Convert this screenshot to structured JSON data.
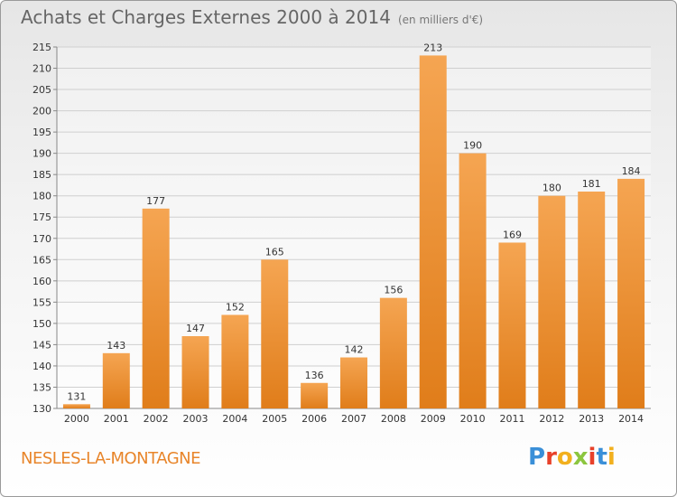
{
  "header": {
    "title": "Achats et Charges Externes 2000 à 2014",
    "unit": "(en milliers d'€)"
  },
  "footer": {
    "commune": "NESLES-LA-MONTAGNE",
    "logo_text": "Proxiti",
    "logo_colors": [
      "#3a8fd8",
      "#e8412a",
      "#f2b01e",
      "#8cc63f",
      "#e8412a",
      "#3a8fd8",
      "#f2b01e"
    ]
  },
  "colors": {
    "bar_top": "#f5a552",
    "bar_bottom": "#e07d1a",
    "grid": "#cfcfcf",
    "axis_text": "#333333"
  },
  "chart_data": {
    "type": "bar",
    "title": "Achats et Charges Externes 2000 à 2014",
    "ylabel": "",
    "xlabel": "",
    "categories": [
      "2000",
      "2001",
      "2002",
      "2003",
      "2004",
      "2005",
      "2006",
      "2007",
      "2008",
      "2009",
      "2010",
      "2011",
      "2012",
      "2013",
      "2014"
    ],
    "values": [
      131,
      143,
      177,
      147,
      152,
      165,
      136,
      142,
      156,
      213,
      190,
      169,
      180,
      181,
      184
    ],
    "ylim": [
      130,
      215
    ],
    "yticks": [
      130,
      135,
      140,
      145,
      150,
      155,
      160,
      165,
      170,
      175,
      180,
      185,
      190,
      195,
      200,
      205,
      210,
      215
    ],
    "grid": true,
    "data_labels": true
  }
}
